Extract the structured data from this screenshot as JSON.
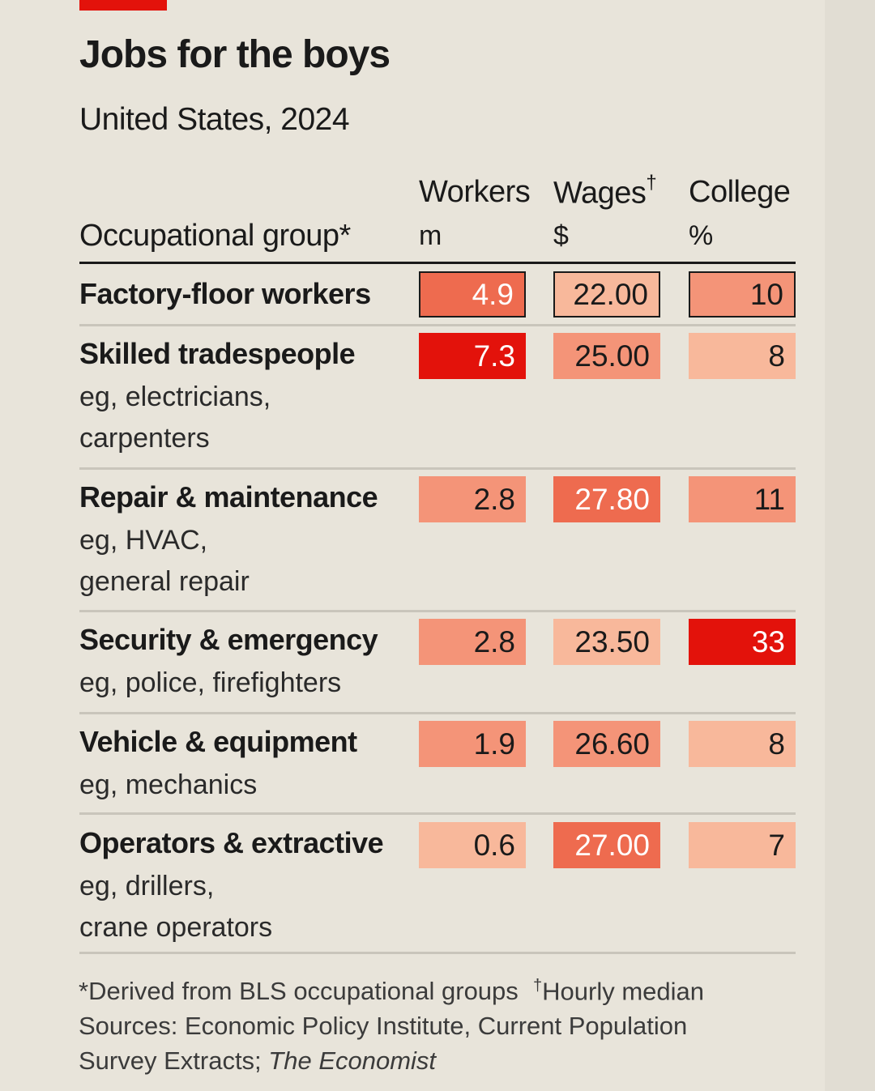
{
  "title": "Jobs for the boys",
  "subtitle": "United States, 2024",
  "colors": {
    "background": "#e8e4da",
    "brand_red": "#e3120b",
    "scale": [
      "#f8b89b",
      "#f49478",
      "#ee6b4f",
      "#e3120b"
    ]
  },
  "chart_data": {
    "type": "table",
    "title": "Jobs for the boys",
    "subtitle": "United States, 2024",
    "columns": [
      {
        "key": "group",
        "label": "Occupational group*",
        "unit": ""
      },
      {
        "key": "workers",
        "label": "Workers",
        "unit": "m"
      },
      {
        "key": "wages",
        "label": "Wages",
        "marker": "†",
        "unit": "$"
      },
      {
        "key": "college",
        "label": "College",
        "unit": "%"
      }
    ],
    "rows": [
      {
        "group": "Factory-floor workers",
        "examples": [],
        "workers": "4.9",
        "wages": "22.00",
        "college": "10",
        "highlighted": true
      },
      {
        "group": "Skilled tradespeople",
        "examples": [
          "eg, electricians,",
          "carpenters"
        ],
        "workers": "7.3",
        "wages": "25.00",
        "college": "8"
      },
      {
        "group": "Repair & maintenance",
        "examples": [
          "eg, HVAC,",
          "general repair"
        ],
        "workers": "2.8",
        "wages": "27.80",
        "college": "11"
      },
      {
        "group": "Security & emergency",
        "examples": [
          "eg, police, firefighters"
        ],
        "workers": "2.8",
        "wages": "23.50",
        "college": "33"
      },
      {
        "group": "Vehicle & equipment",
        "examples": [
          "eg, mechanics"
        ],
        "workers": "1.9",
        "wages": "26.60",
        "college": "8"
      },
      {
        "group": "Operators & extractive",
        "examples": [
          "eg, drillers,",
          "crane operators"
        ],
        "workers": "0.6",
        "wages": "27.00",
        "college": "7"
      }
    ],
    "shading": {
      "workers": [
        "#ee6b4f",
        "#e3120b",
        "#f49478",
        "#f49478",
        "#f49478",
        "#f8b89b"
      ],
      "wages": [
        "#f8b89b",
        "#f49478",
        "#ee6b4f",
        "#f8b89b",
        "#f49478",
        "#ee6b4f"
      ],
      "college": [
        "#f49478",
        "#f8b89b",
        "#f49478",
        "#e3120b",
        "#f8b89b",
        "#f8b89b"
      ]
    }
  },
  "footnotes": {
    "asterisk_note": "*Derived from BLS occupational groups",
    "dagger_symbol": "†",
    "dagger_note": "Hourly median",
    "sources_line1": "Sources: Economic Policy Institute, Current Population",
    "sources_line2_pre": "Survey Extracts; ",
    "sources_line2_italic": "The Economist"
  }
}
